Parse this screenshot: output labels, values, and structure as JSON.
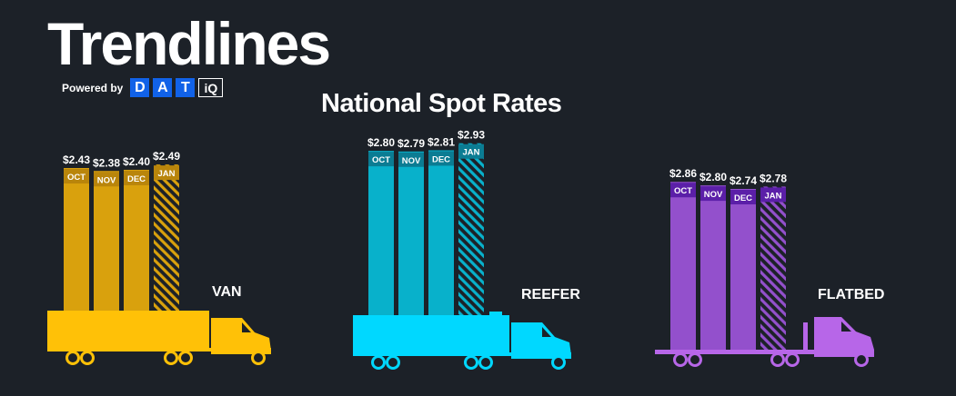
{
  "header": {
    "title": "Trendlines",
    "powered_by": "Powered by",
    "logo_letters": [
      "D",
      "A",
      "T"
    ],
    "logo_iq": "iQ",
    "subtitle": "National Spot Rates"
  },
  "colors": {
    "background": "#1c2128",
    "van": "#ffc107",
    "van_bar": "#d9a10d",
    "van_tag": "#b9850b",
    "reefer": "#00d8ff",
    "reefer_bar": "#08b1cb",
    "reefer_tag": "#0b7c93",
    "flatbed": "#b766e8",
    "flatbed_bar": "#9350cc",
    "flatbed_tag": "#5b1fa8",
    "logo_blue": "#1162e8"
  },
  "chart_data": [
    {
      "type": "bar",
      "name": "VAN",
      "categories": [
        "OCT",
        "NOV",
        "DEC",
        "JAN"
      ],
      "values": [
        2.43,
        2.38,
        2.4,
        2.49
      ],
      "value_labels": [
        "$2.43",
        "$2.38",
        "$2.40",
        "$2.49"
      ],
      "hatched_last": true,
      "trailer": "van"
    },
    {
      "type": "bar",
      "name": "REEFER",
      "categories": [
        "OCT",
        "NOV",
        "DEC",
        "JAN"
      ],
      "values": [
        2.8,
        2.79,
        2.81,
        2.93
      ],
      "value_labels": [
        "$2.80",
        "$2.79",
        "$2.81",
        "$2.93"
      ],
      "hatched_last": true,
      "trailer": "reefer"
    },
    {
      "type": "bar",
      "name": "FLATBED",
      "categories": [
        "OCT",
        "NOV",
        "DEC",
        "JAN"
      ],
      "values": [
        2.86,
        2.8,
        2.74,
        2.78
      ],
      "value_labels": [
        "$2.86",
        "$2.80",
        "$2.74",
        "$2.78"
      ],
      "hatched_last": true,
      "trailer": "flatbed"
    }
  ]
}
